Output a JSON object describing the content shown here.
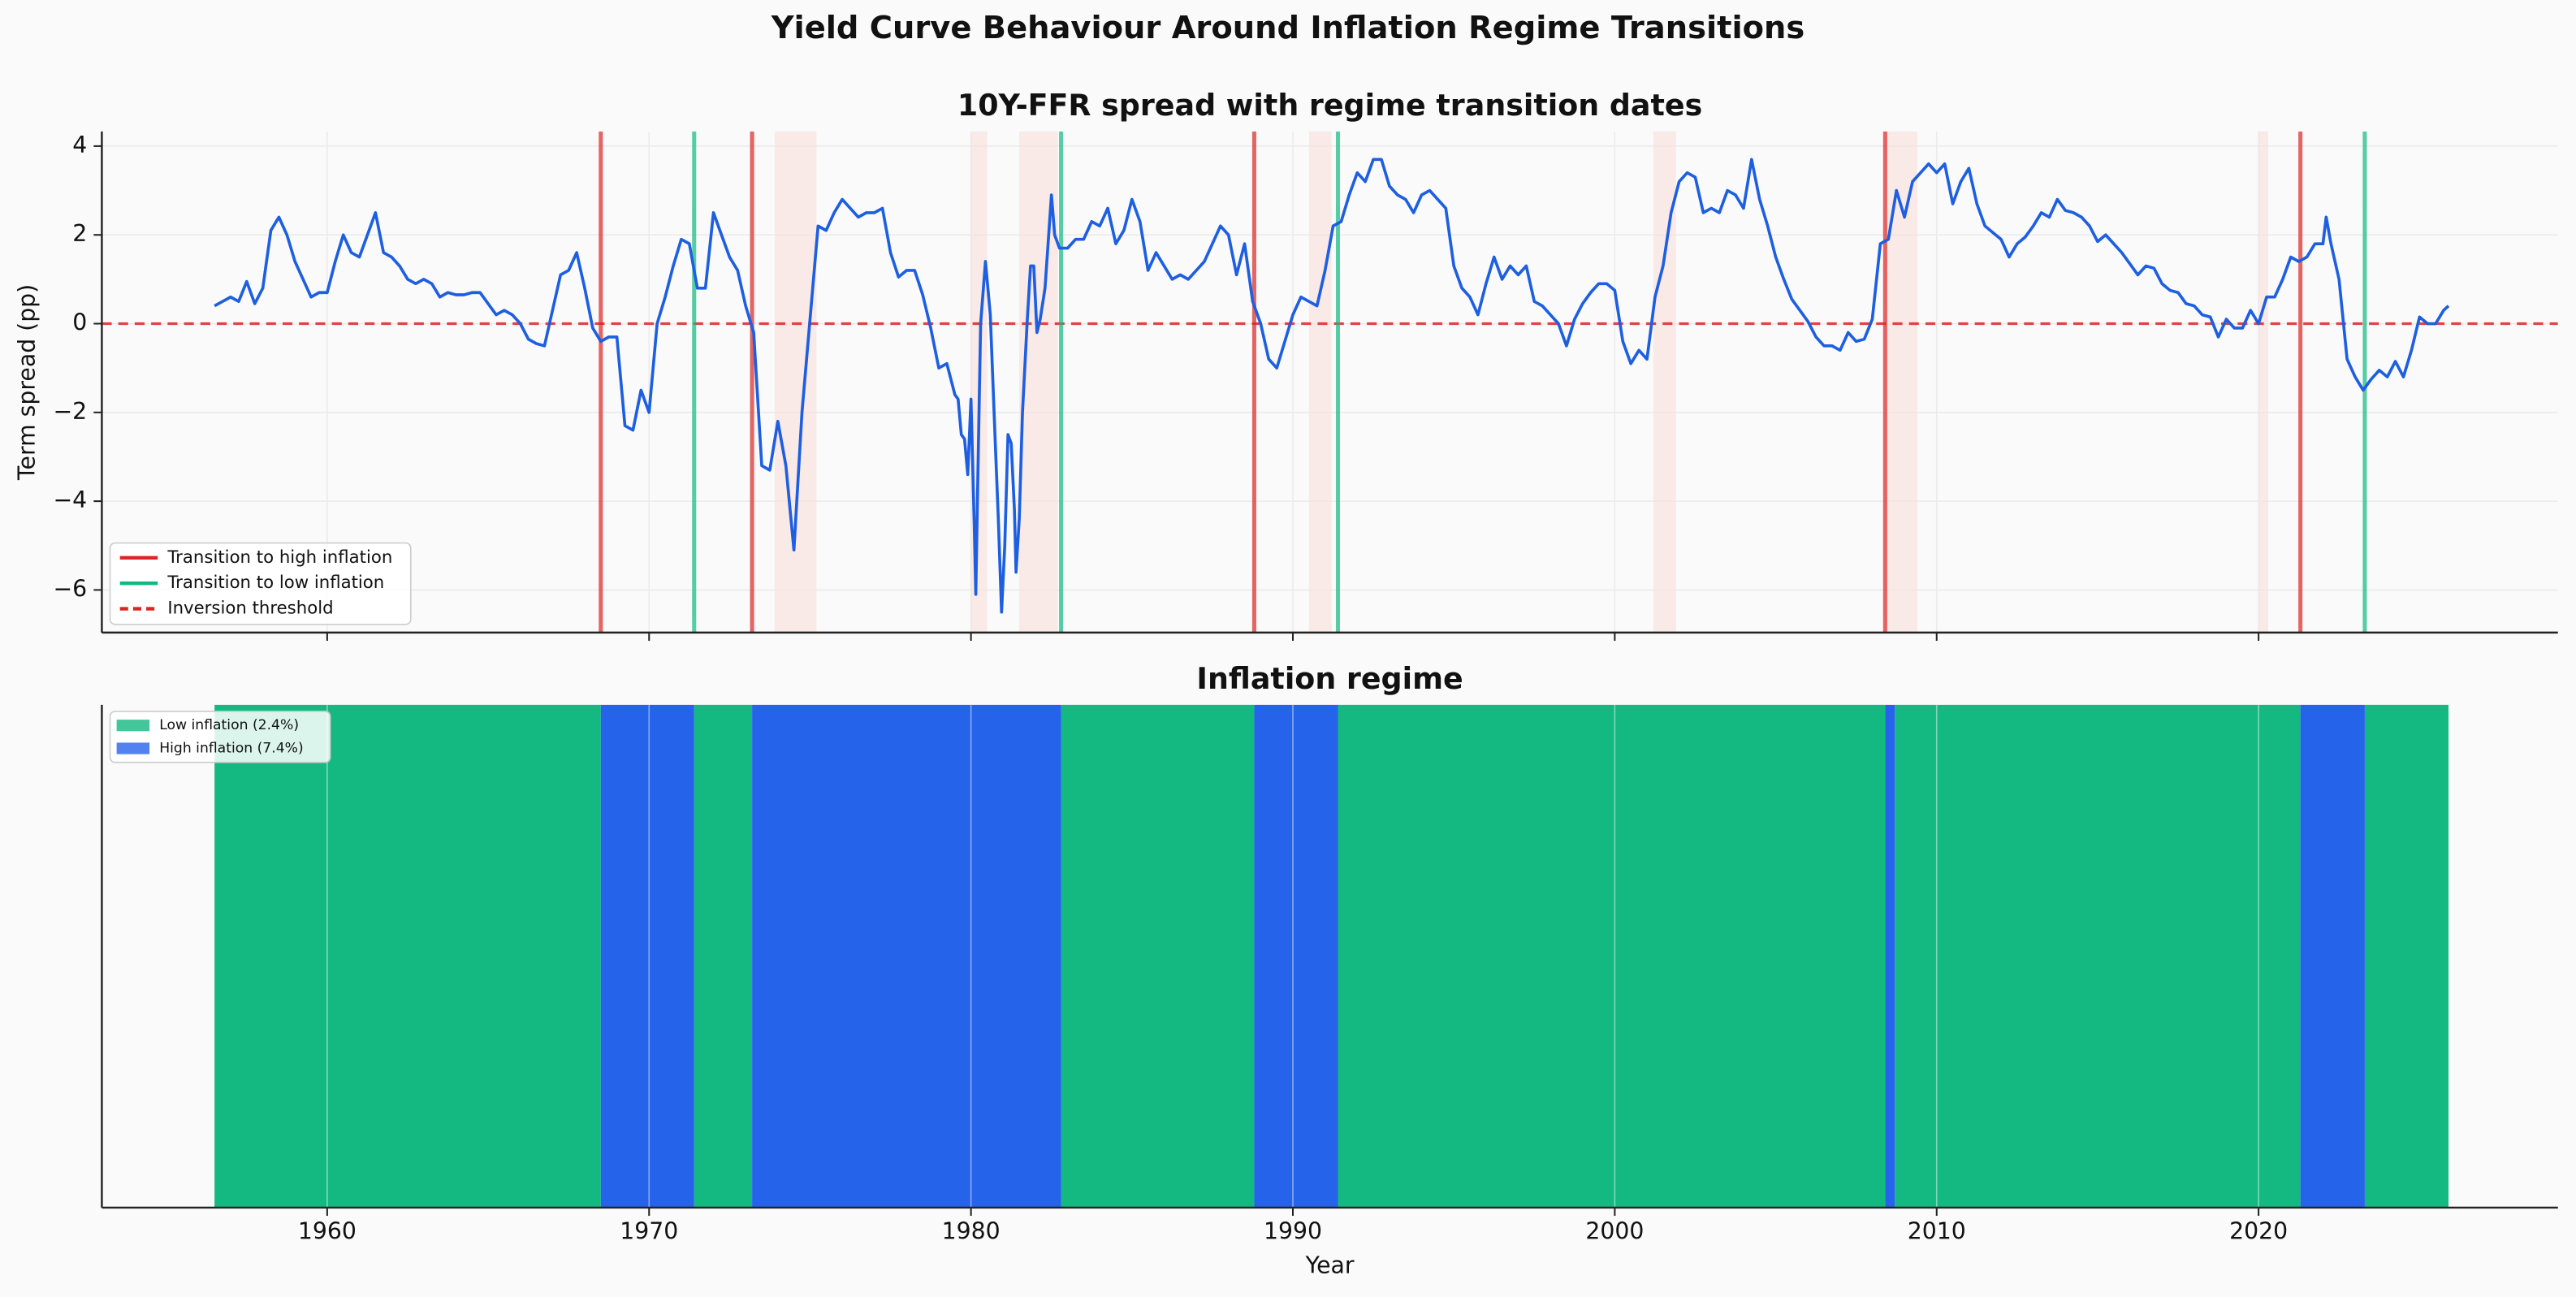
{
  "title": "Yield Curve Behaviour Around Inflation Regime Transitions",
  "chart_data": [
    {
      "type": "line",
      "title": "10Y-FFR spread with regime transition dates",
      "ylabel": "Term spread (pp)",
      "x": [
        1956.5,
        1956.75,
        1957,
        1957.25,
        1957.5,
        1957.75,
        1958,
        1958.25,
        1958.5,
        1958.75,
        1959,
        1959.25,
        1959.5,
        1959.75,
        1960,
        1960.25,
        1960.5,
        1960.75,
        1961,
        1961.25,
        1961.5,
        1961.75,
        1962,
        1962.25,
        1962.5,
        1962.75,
        1963,
        1963.25,
        1963.5,
        1963.75,
        1964,
        1964.25,
        1964.5,
        1964.75,
        1965,
        1965.25,
        1965.5,
        1965.75,
        1966,
        1966.25,
        1966.5,
        1966.75,
        1967,
        1967.25,
        1967.5,
        1967.75,
        1968,
        1968.25,
        1968.5,
        1968.75,
        1969,
        1969.25,
        1969.5,
        1969.75,
        1970,
        1970.25,
        1970.5,
        1970.75,
        1971,
        1971.25,
        1971.5,
        1971.75,
        1972,
        1972.25,
        1972.5,
        1972.75,
        1973,
        1973.25,
        1973.5,
        1973.75,
        1974,
        1974.25,
        1974.5,
        1974.75,
        1975,
        1975.25,
        1975.5,
        1975.75,
        1976,
        1976.25,
        1976.5,
        1976.75,
        1977,
        1977.25,
        1977.5,
        1977.75,
        1978,
        1978.25,
        1978.5,
        1978.75,
        1979,
        1979.25,
        1979.5,
        1979.6,
        1979.7,
        1979.8,
        1979.9,
        1980,
        1980.1,
        1980.15,
        1980.2,
        1980.3,
        1980.45,
        1980.6,
        1980.75,
        1980.85,
        1980.95,
        1981.05,
        1981.15,
        1981.25,
        1981.35,
        1981.4,
        1981.5,
        1981.6,
        1981.75,
        1981.85,
        1981.95,
        1982.05,
        1982.15,
        1982.3,
        1982.5,
        1982.6,
        1982.75,
        1983,
        1983.25,
        1983.5,
        1983.75,
        1984,
        1984.25,
        1984.5,
        1984.75,
        1985,
        1985.25,
        1985.5,
        1985.75,
        1986,
        1986.25,
        1986.5,
        1986.75,
        1987,
        1987.25,
        1987.5,
        1987.75,
        1988,
        1988.25,
        1988.5,
        1988.75,
        1989,
        1989.25,
        1989.5,
        1989.75,
        1990,
        1990.25,
        1990.5,
        1990.75,
        1991,
        1991.25,
        1991.5,
        1991.75,
        1992,
        1992.25,
        1992.5,
        1992.75,
        1993,
        1993.25,
        1993.5,
        1993.75,
        1994,
        1994.25,
        1994.5,
        1994.75,
        1995,
        1995.25,
        1995.5,
        1995.75,
        1996,
        1996.25,
        1996.5,
        1996.75,
        1997,
        1997.25,
        1997.5,
        1997.75,
        1998,
        1998.25,
        1998.5,
        1998.75,
        1999,
        1999.25,
        1999.5,
        1999.75,
        2000,
        2000.25,
        2000.5,
        2000.75,
        2001,
        2001.25,
        2001.5,
        2001.75,
        2002,
        2002.25,
        2002.5,
        2002.75,
        2003,
        2003.25,
        2003.5,
        2003.75,
        2004,
        2004.25,
        2004.5,
        2004.75,
        2005,
        2005.25,
        2005.5,
        2005.75,
        2006,
        2006.25,
        2006.5,
        2006.75,
        2007,
        2007.25,
        2007.5,
        2007.75,
        2008,
        2008.25,
        2008.5,
        2008.75,
        2009,
        2009.25,
        2009.5,
        2009.75,
        2010,
        2010.25,
        2010.5,
        2010.75,
        2011,
        2011.25,
        2011.5,
        2011.75,
        2012,
        2012.25,
        2012.5,
        2012.75,
        2013,
        2013.25,
        2013.5,
        2013.75,
        2014,
        2014.25,
        2014.5,
        2014.75,
        2015,
        2015.25,
        2015.5,
        2015.75,
        2016,
        2016.25,
        2016.5,
        2016.75,
        2017,
        2017.25,
        2017.5,
        2017.75,
        2018,
        2018.25,
        2018.5,
        2018.75,
        2019,
        2019.25,
        2019.5,
        2019.75,
        2020,
        2020.25,
        2020.5,
        2020.75,
        2021,
        2021.25,
        2021.5,
        2021.75,
        2022,
        2022.1,
        2022.25,
        2022.5,
        2022.75,
        2023,
        2023.25,
        2023.5,
        2023.75,
        2024,
        2024.25,
        2024.5,
        2024.75,
        2025,
        2025.25,
        2025.5,
        2025.75,
        2025.9
      ],
      "values": [
        0.4,
        0.5,
        0.6,
        0.5,
        0.95,
        0.45,
        0.8,
        2.1,
        2.4,
        2.0,
        1.4,
        1.0,
        0.6,
        0.7,
        0.7,
        1.4,
        2.0,
        1.6,
        1.5,
        2.0,
        2.5,
        1.6,
        1.5,
        1.3,
        1.0,
        0.9,
        1.0,
        0.9,
        0.6,
        0.7,
        0.65,
        0.65,
        0.7,
        0.7,
        0.45,
        0.2,
        0.3,
        0.2,
        0.0,
        -0.35,
        -0.45,
        -0.5,
        0.3,
        1.1,
        1.2,
        1.6,
        0.8,
        -0.1,
        -0.4,
        -0.3,
        -0.3,
        -2.3,
        -2.4,
        -1.5,
        -2.0,
        0.0,
        0.6,
        1.3,
        1.9,
        1.8,
        0.8,
        0.8,
        2.5,
        2.0,
        1.5,
        1.2,
        0.4,
        -0.2,
        -3.2,
        -3.3,
        -2.2,
        -3.2,
        -5.1,
        -2.0,
        0.1,
        2.2,
        2.1,
        2.5,
        2.8,
        2.6,
        2.4,
        2.5,
        2.5,
        2.6,
        1.6,
        1.05,
        1.2,
        1.2,
        0.65,
        -0.1,
        -1.0,
        -0.9,
        -1.6,
        -1.7,
        -2.5,
        -2.6,
        -3.4,
        -1.7,
        -4.5,
        -6.1,
        -4.0,
        0.0,
        1.4,
        0.2,
        -2.6,
        -4.4,
        -6.5,
        -5.0,
        -2.5,
        -2.7,
        -4.2,
        -5.6,
        -4.4,
        -2.0,
        0.1,
        1.3,
        1.3,
        -0.2,
        0.1,
        0.8,
        2.9,
        2.0,
        1.7,
        1.7,
        1.9,
        1.9,
        2.3,
        2.2,
        2.6,
        1.8,
        2.1,
        2.8,
        2.3,
        1.2,
        1.6,
        1.3,
        1.0,
        1.1,
        1.0,
        1.2,
        1.4,
        1.8,
        2.2,
        2.0,
        1.1,
        1.8,
        0.5,
        0.0,
        -0.8,
        -1.0,
        -0.4,
        0.2,
        0.6,
        0.5,
        0.4,
        1.2,
        2.2,
        2.3,
        2.9,
        3.4,
        3.2,
        3.7,
        3.7,
        3.1,
        2.9,
        2.8,
        2.5,
        2.9,
        3.0,
        2.8,
        2.6,
        1.3,
        0.8,
        0.6,
        0.2,
        0.9,
        1.5,
        1.0,
        1.3,
        1.1,
        1.3,
        0.5,
        0.4,
        0.2,
        0.0,
        -0.5,
        0.1,
        0.45,
        0.7,
        0.9,
        0.9,
        0.75,
        -0.4,
        -0.9,
        -0.6,
        -0.8,
        0.6,
        1.3,
        2.5,
        3.2,
        3.4,
        3.3,
        2.5,
        2.6,
        2.5,
        3.0,
        2.9,
        2.6,
        3.7,
        2.8,
        2.2,
        1.5,
        1.0,
        0.55,
        0.3,
        0.05,
        -0.3,
        -0.5,
        -0.5,
        -0.6,
        -0.2,
        -0.4,
        -0.35,
        0.1,
        1.8,
        1.9,
        3.0,
        2.4,
        3.2,
        3.4,
        3.6,
        3.4,
        3.6,
        2.7,
        3.2,
        3.5,
        2.7,
        2.2,
        2.05,
        1.9,
        1.5,
        1.8,
        1.95,
        2.2,
        2.5,
        2.4,
        2.8,
        2.55,
        2.5,
        2.4,
        2.2,
        1.85,
        2.0,
        1.8,
        1.6,
        1.35,
        1.1,
        1.3,
        1.25,
        0.9,
        0.75,
        0.7,
        0.45,
        0.4,
        0.2,
        0.15,
        -0.3,
        0.1,
        -0.1,
        -0.1,
        0.3,
        0.0,
        0.6,
        0.6,
        1.0,
        1.5,
        1.4,
        1.5,
        1.8,
        1.8,
        2.4,
        1.8,
        1.0,
        -0.8,
        -1.2,
        -1.5,
        -1.25,
        -1.05,
        -1.2,
        -0.85,
        -1.2,
        -0.6,
        0.15,
        0.0,
        0.0,
        0.3,
        0.4
      ],
      "color": "#1d5fe0",
      "xlim": [
        1953.0,
        2029.3
      ],
      "ylim": [
        -6.96,
        4.33
      ],
      "xticks": [
        1960,
        1970,
        1980,
        1990,
        2000,
        2010,
        2020
      ],
      "yticks": [
        {
          "value": -6,
          "label": "−6"
        },
        {
          "value": -4,
          "label": "−4"
        },
        {
          "value": -2,
          "label": "−2"
        },
        0,
        2,
        4
      ],
      "grid": true,
      "legend": "lower left",
      "shade_color": "#f9dedb",
      "shaded_spans": [
        [
          1973.9,
          1975.2
        ],
        [
          1980.0,
          1980.5
        ],
        [
          1981.5,
          1982.7
        ],
        [
          1990.5,
          1991.2
        ],
        [
          2001.2,
          2001.9
        ],
        [
          2008.4,
          2009.4
        ],
        [
          2020.0,
          2020.3
        ]
      ],
      "transitions": [
        {
          "name": "Transition to high inflation",
          "color": "#dc2626",
          "x": [
            1968.5,
            1973.2,
            1988.8,
            2008.4,
            2021.3
          ]
        },
        {
          "name": "Transition to low inflation",
          "color": "#10b981",
          "x": [
            1971.4,
            1982.8,
            1991.4,
            2023.3
          ]
        }
      ],
      "threshold": {
        "name": "Inversion threshold",
        "value": 0,
        "color": "#dc2626"
      }
    },
    {
      "type": "regime",
      "title": "Inflation regime",
      "xlabel": "Year",
      "xlim": [
        1953.0,
        2029.3
      ],
      "xticks": [
        1960,
        1970,
        1980,
        1990,
        2000,
        2010,
        2020
      ],
      "grid": true,
      "legend": "upper left",
      "series": [
        {
          "name": "Low inflation (2.4%)",
          "color": "#14b981",
          "spans": [
            [
              1956.5,
              1968.5
            ],
            [
              1971.4,
              1973.2
            ],
            [
              1982.8,
              1988.8
            ],
            [
              1991.4,
              2008.4
            ],
            [
              2008.7,
              2021.3
            ],
            [
              2023.3,
              2025.9
            ]
          ]
        },
        {
          "name": "High inflation (7.4%)",
          "color": "#2563eb",
          "spans": [
            [
              1968.5,
              1971.4
            ],
            [
              1973.2,
              1982.8
            ],
            [
              1988.8,
              1991.4
            ],
            [
              2008.4,
              2008.7
            ],
            [
              2021.3,
              2023.3
            ]
          ]
        }
      ]
    }
  ]
}
